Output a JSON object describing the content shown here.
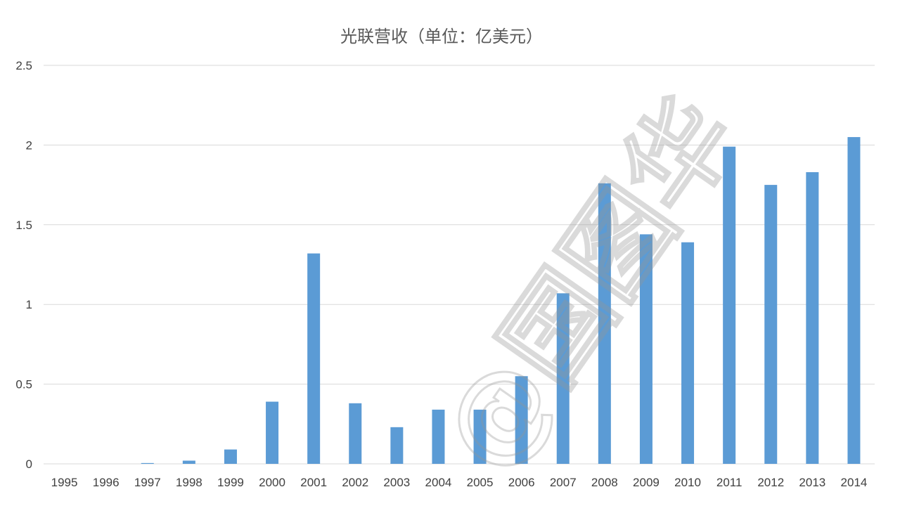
{
  "chart_data": {
    "type": "bar",
    "title": "光联营收（单位：亿美元）",
    "xlabel": "",
    "ylabel": "",
    "categories": [
      "1995",
      "1996",
      "1997",
      "1998",
      "1999",
      "2000",
      "2001",
      "2002",
      "2003",
      "2004",
      "2005",
      "2006",
      "2007",
      "2008",
      "2009",
      "2010",
      "2011",
      "2012",
      "2013",
      "2014"
    ],
    "values": [
      0,
      0,
      0.005,
      0.02,
      0.09,
      0.39,
      1.32,
      0.38,
      0.23,
      0.34,
      0.34,
      0.55,
      1.07,
      1.76,
      1.44,
      1.39,
      1.99,
      1.75,
      1.83,
      2.05
    ],
    "ylim": [
      0,
      2.5
    ],
    "yticks": [
      "0",
      "0.5",
      "1",
      "1.5",
      "2",
      "2.5"
    ],
    "grid": true,
    "bar_color": "#5b9bd5"
  },
  "watermark": {
    "text": "@国图华"
  }
}
